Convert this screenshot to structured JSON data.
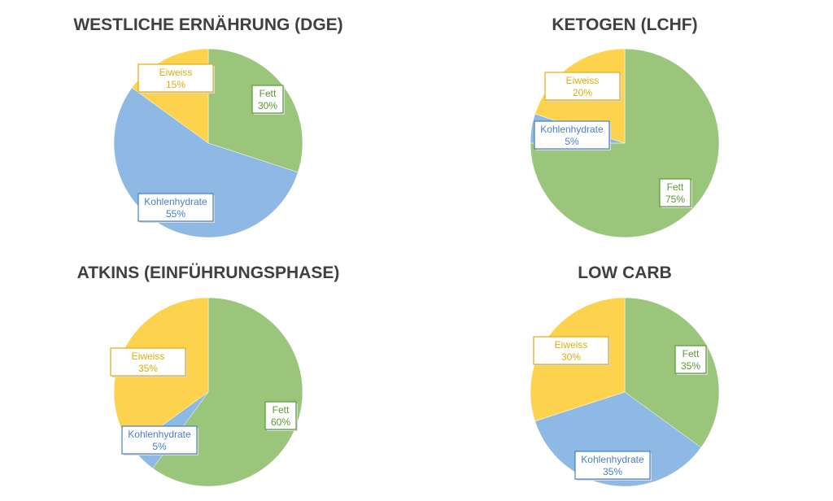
{
  "chart_data": [
    {
      "type": "pie",
      "title": "WESTLICHE ERNÄHRUNG (DGE)",
      "slices": [
        {
          "label": "Fett",
          "value": 30,
          "display": "30%",
          "color": "#9cc57c"
        },
        {
          "label": "Kohlenhydrate",
          "value": 55,
          "display": "55%",
          "color": "#8db9e4"
        },
        {
          "label": "Eiweiss",
          "value": 15,
          "display": "15%",
          "color": "#fdd24c"
        }
      ]
    },
    {
      "type": "pie",
      "title": "KETOGEN (LCHF)",
      "slices": [
        {
          "label": "Fett",
          "value": 75,
          "display": "75%",
          "color": "#9cc57c"
        },
        {
          "label": "Kohlenhydrate",
          "value": 5,
          "display": "5%",
          "color": "#8db9e4"
        },
        {
          "label": "Eiweiss",
          "value": 20,
          "display": "20%",
          "color": "#fdd24c"
        }
      ]
    },
    {
      "type": "pie",
      "title": "ATKINS (EINFÜHRUNGSPHASE)",
      "slices": [
        {
          "label": "Fett",
          "value": 60,
          "display": "60%",
          "color": "#9cc57c"
        },
        {
          "label": "Kohlenhydrate",
          "value": 5,
          "display": "5%",
          "color": "#8db9e4"
        },
        {
          "label": "Eiweiss",
          "value": 35,
          "display": "35%",
          "color": "#fdd24c"
        }
      ]
    },
    {
      "type": "pie",
      "title": "LOW CARB",
      "slices": [
        {
          "label": "Fett",
          "value": 35,
          "display": "35%",
          "color": "#9cc57c"
        },
        {
          "label": "Kohlenhydrate",
          "value": 35,
          "display": "35%",
          "color": "#8db9e4"
        },
        {
          "label": "Eiweiss",
          "value": 30,
          "display": "30%",
          "color": "#fdd24c"
        }
      ]
    }
  ],
  "label_text_colors": {
    "Fett": "#5a9a34",
    "Kohlenhydrate": "#4a80bf",
    "Eiweiss": "#e0ad10"
  }
}
